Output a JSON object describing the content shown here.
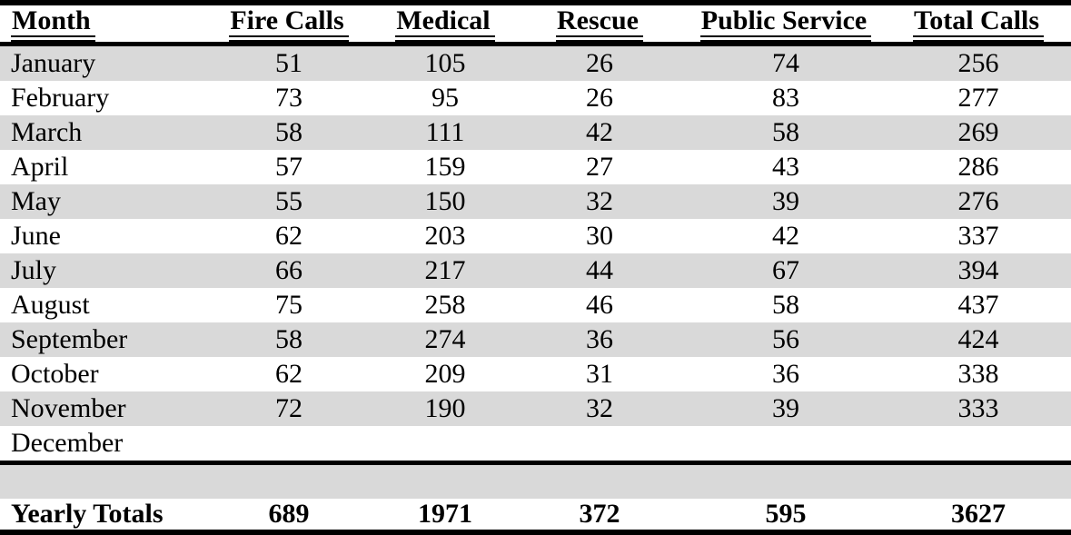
{
  "table": {
    "columns": [
      "Month",
      "Fire Calls",
      "Medical",
      "Rescue",
      "Public Service",
      "Total Calls"
    ],
    "rows": [
      {
        "month": "January",
        "fire": "51",
        "medical": "105",
        "rescue": "26",
        "public_service": "74",
        "total": "256"
      },
      {
        "month": "February",
        "fire": "73",
        "medical": "95",
        "rescue": "26",
        "public_service": "83",
        "total": "277"
      },
      {
        "month": "March",
        "fire": "58",
        "medical": "111",
        "rescue": "42",
        "public_service": "58",
        "total": "269"
      },
      {
        "month": "April",
        "fire": "57",
        "medical": "159",
        "rescue": "27",
        "public_service": "43",
        "total": "286"
      },
      {
        "month": "May",
        "fire": "55",
        "medical": "150",
        "rescue": "32",
        "public_service": "39",
        "total": "276"
      },
      {
        "month": "June",
        "fire": "62",
        "medical": "203",
        "rescue": "30",
        "public_service": "42",
        "total": "337"
      },
      {
        "month": "July",
        "fire": "66",
        "medical": "217",
        "rescue": "44",
        "public_service": "67",
        "total": "394"
      },
      {
        "month": "August",
        "fire": "75",
        "medical": "258",
        "rescue": "46",
        "public_service": "58",
        "total": "437"
      },
      {
        "month": "September",
        "fire": "58",
        "medical": "274",
        "rescue": "36",
        "public_service": "56",
        "total": "424"
      },
      {
        "month": "October",
        "fire": "62",
        "medical": "209",
        "rescue": "31",
        "public_service": "36",
        "total": "338"
      },
      {
        "month": "November",
        "fire": "72",
        "medical": "190",
        "rescue": "32",
        "public_service": "39",
        "total": "333"
      },
      {
        "month": "December",
        "fire": "",
        "medical": "",
        "rescue": "",
        "public_service": "",
        "total": ""
      }
    ],
    "totals_row": {
      "label": "Yearly Totals",
      "fire": "689",
      "medical": "1971",
      "rescue": "372",
      "public_service": "595",
      "total": "3627"
    }
  },
  "colors": {
    "row_shade": "#d9d9d9",
    "rule": "#000000",
    "text": "#000000",
    "background": "#ffffff"
  }
}
